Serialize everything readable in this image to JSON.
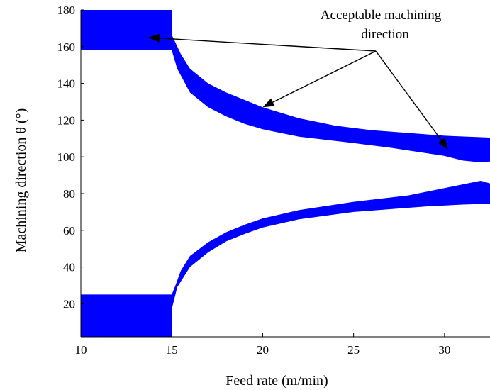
{
  "chart_data": {
    "type": "area",
    "title": "",
    "xlabel": "Feed rate (m/min)",
    "ylabel": "Machining direction θ (°)",
    "xlim": [
      10,
      32.5
    ],
    "ylim": [
      2,
      180
    ],
    "xticks": [
      10,
      15,
      20,
      25,
      30
    ],
    "yticks": [
      20,
      40,
      60,
      80,
      100,
      120,
      140,
      160,
      180
    ],
    "grid": false,
    "legend": "none",
    "fill_color": "#0000ff",
    "annotation": {
      "text_line1": "Acceptable machining",
      "text_line2": "direction",
      "arrow_targets": [
        [
          13.7,
          165
        ],
        [
          20,
          127
        ],
        [
          30.2,
          104
        ]
      ]
    },
    "regions": [
      {
        "name": "upper",
        "polygon": [
          [
            10,
            180
          ],
          [
            15,
            180
          ],
          [
            15,
            166.5
          ],
          [
            15.5,
            156
          ],
          [
            16,
            148
          ],
          [
            17,
            140
          ],
          [
            18,
            135
          ],
          [
            19,
            131
          ],
          [
            20,
            127
          ],
          [
            22,
            121
          ],
          [
            24,
            117
          ],
          [
            26,
            114.5
          ],
          [
            28,
            113
          ],
          [
            30,
            111.5
          ],
          [
            32.5,
            110.5
          ],
          [
            32.5,
            97.5
          ],
          [
            32,
            97
          ],
          [
            31,
            98
          ],
          [
            30,
            100.5
          ],
          [
            29,
            102
          ],
          [
            27,
            105
          ],
          [
            25,
            107.5
          ],
          [
            22,
            111
          ],
          [
            20,
            115
          ],
          [
            19,
            118
          ],
          [
            18,
            122
          ],
          [
            17,
            127
          ],
          [
            16,
            135
          ],
          [
            15.3,
            148
          ],
          [
            15,
            158
          ],
          [
            10,
            158
          ]
        ]
      },
      {
        "name": "lower",
        "polygon": [
          [
            10,
            2
          ],
          [
            15,
            2
          ],
          [
            15,
            17
          ],
          [
            15.3,
            29
          ],
          [
            16,
            40
          ],
          [
            17,
            48
          ],
          [
            18,
            54
          ],
          [
            19,
            58
          ],
          [
            20,
            61.5
          ],
          [
            22,
            66
          ],
          [
            25,
            70
          ],
          [
            27,
            71.5
          ],
          [
            29,
            73
          ],
          [
            31,
            74
          ],
          [
            32.5,
            74.5
          ],
          [
            32.5,
            85.5
          ],
          [
            32,
            87
          ],
          [
            30,
            83
          ],
          [
            28,
            79
          ],
          [
            25,
            75.5
          ],
          [
            22,
            71
          ],
          [
            20,
            66.5
          ],
          [
            19,
            63
          ],
          [
            18,
            59
          ],
          [
            17,
            53.5
          ],
          [
            16,
            46
          ],
          [
            15.5,
            38
          ],
          [
            15.2,
            30
          ],
          [
            15,
            25
          ],
          [
            10,
            25
          ]
        ]
      }
    ]
  }
}
